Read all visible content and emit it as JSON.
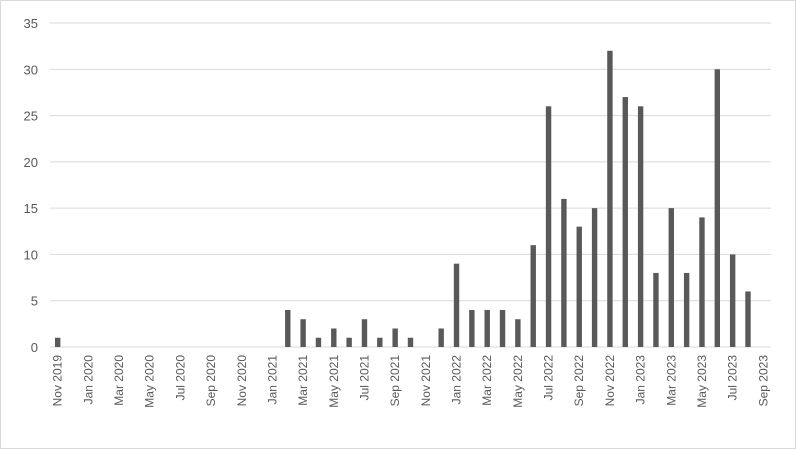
{
  "chart_data": {
    "type": "bar",
    "categories": [
      "Nov 2019",
      null,
      "Jan 2020",
      null,
      "Mar 2020",
      null,
      "May 2020",
      null,
      "Jul 2020",
      null,
      "Sep 2020",
      null,
      "Nov 2020",
      null,
      "Jan 2021",
      null,
      "Mar 2021",
      null,
      "May 2021",
      null,
      "Jul 2021",
      null,
      "Sep 2021",
      null,
      "Nov 2021",
      null,
      "Jan 2022",
      null,
      "Mar 2022",
      null,
      "May 2022",
      null,
      "Jul 2022",
      null,
      "Sep 2022",
      null,
      "Nov 2022",
      null,
      "Jan 2023",
      null,
      "Mar 2023",
      null,
      "May 2023",
      null,
      "Jul 2023",
      null,
      "Sep 2023"
    ],
    "values": [
      1,
      0,
      0,
      0,
      0,
      0,
      0,
      0,
      0,
      0,
      0,
      0,
      0,
      0,
      0,
      4,
      3,
      1,
      2,
      1,
      3,
      1,
      2,
      1,
      0,
      2,
      9,
      4,
      4,
      4,
      3,
      11,
      26,
      16,
      13,
      15,
      32,
      27,
      26,
      8,
      15,
      8,
      14,
      30,
      10,
      6,
      0
    ],
    "color": "#595959",
    "ylim": [
      0,
      35
    ],
    "yticks": [
      0,
      5,
      10,
      15,
      20,
      25,
      30,
      35
    ],
    "grid": true
  }
}
